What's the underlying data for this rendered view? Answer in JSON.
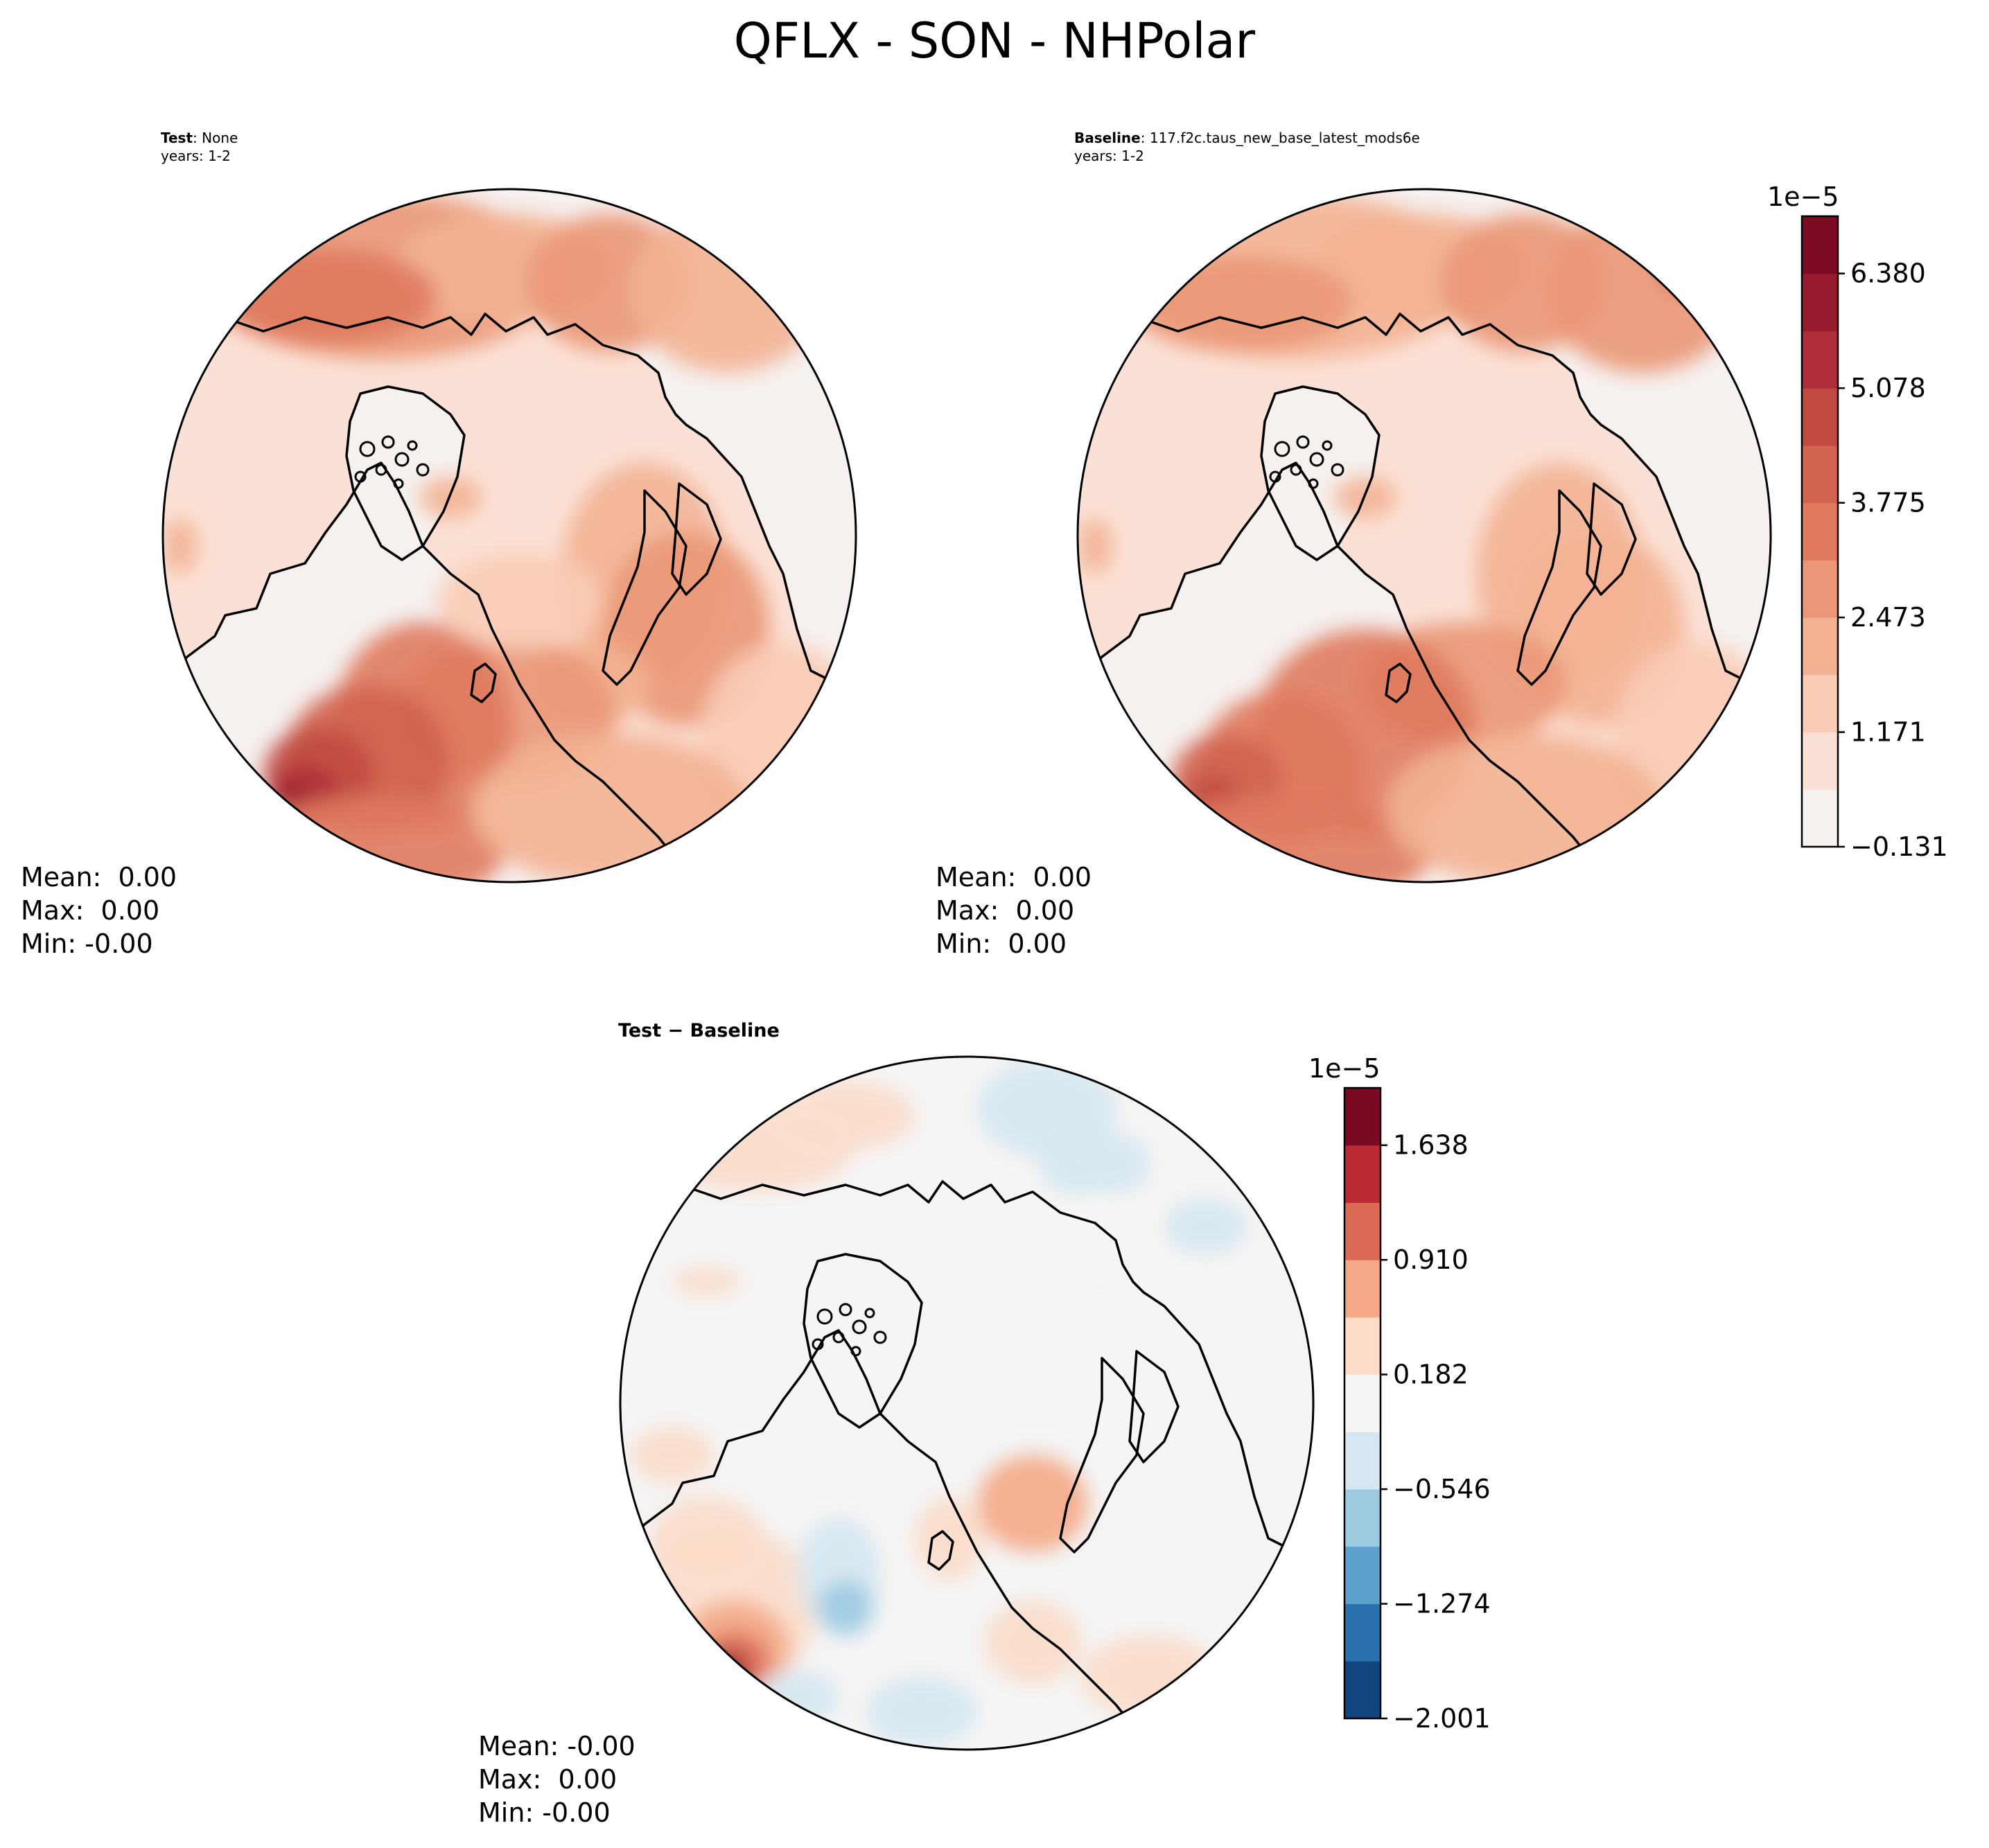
{
  "figure": {
    "title": "QFLX - SON - NHPolar"
  },
  "panels": {
    "test": {
      "title_bold": "Test",
      "title_sep": ": ",
      "title_rest": "None",
      "years": "years: 1-2",
      "stats": {
        "mean": "Mean:  0.00",
        "max": "Max:  0.00",
        "min": "Min: -0.00"
      }
    },
    "baseline": {
      "title_bold": "Baseline",
      "title_sep": ": ",
      "title_rest": "117.f2c.taus_new_base_latest_mods6e",
      "years": "years: 1-2",
      "stats": {
        "mean": "Mean:  0.00",
        "max": "Max:  0.00",
        "min": "Min:  0.00"
      }
    },
    "diff": {
      "title": "Test − Baseline",
      "stats": {
        "mean": "Mean: -0.00",
        "max": "Max:  0.00",
        "min": "Min: -0.00"
      }
    }
  },
  "colorbars": {
    "main": {
      "exponent": "1e−5",
      "ticks": [
        "−0.131",
        "1.171",
        "2.473",
        "3.775",
        "5.078",
        "6.380"
      ],
      "colors": [
        "#f6f1ef",
        "#fbe1d5",
        "#f9ccb6",
        "#f3b294",
        "#ea9777",
        "#df7a5e",
        "#d1634f",
        "#c14a43",
        "#ae2d39",
        "#971b2f",
        "#7c0a22"
      ]
    },
    "diff": {
      "exponent": "1e−5",
      "ticks": [
        "−2.001",
        "−1.274",
        "−0.546",
        "0.182",
        "0.910",
        "1.638"
      ],
      "colors": [
        "#0f467e",
        "#2a6fae",
        "#5ba1cc",
        "#9ccae1",
        "#d5e7f1",
        "#f5f5f5",
        "#fbdcc9",
        "#f4a886",
        "#db6a55",
        "#bb2a33",
        "#7a0a22"
      ]
    }
  },
  "map_colors": {
    "land_main": "#f6f1ef",
    "ocean_main": "#fbe1d5",
    "land_diff": "#f5f5f5",
    "ocean_diff": "#f5f5f5"
  }
}
